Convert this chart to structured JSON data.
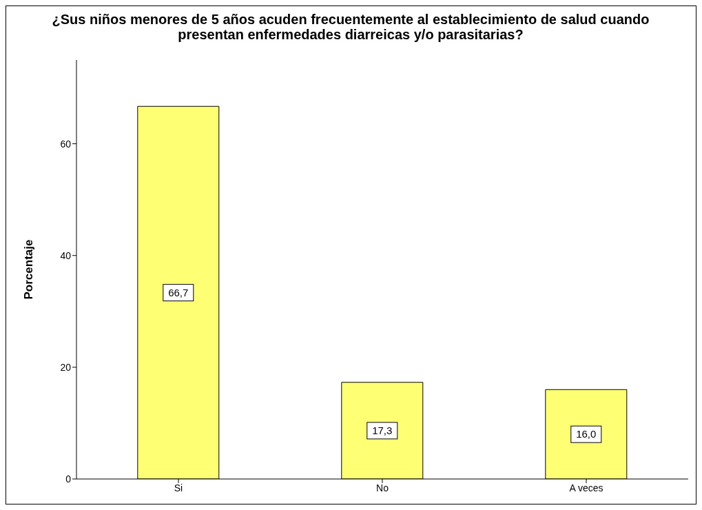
{
  "chart_data": {
    "type": "bar",
    "title": "¿Sus niños menores de 5 años acuden frecuentemente al establecimiento de salud cuando presentan enfermedades diarreicas y/o parasitarias?",
    "ylabel": "Porcentaje",
    "categories": [
      "Si",
      "No",
      "A veces"
    ],
    "values": [
      66.7,
      17.3,
      16.0
    ],
    "value_labels": [
      "66,7",
      "17,3",
      "16,0"
    ],
    "color": "#ffff73",
    "ylim": [
      0,
      75
    ],
    "yticks": [
      0,
      20,
      40,
      60
    ],
    "grid": false,
    "legend": false
  }
}
